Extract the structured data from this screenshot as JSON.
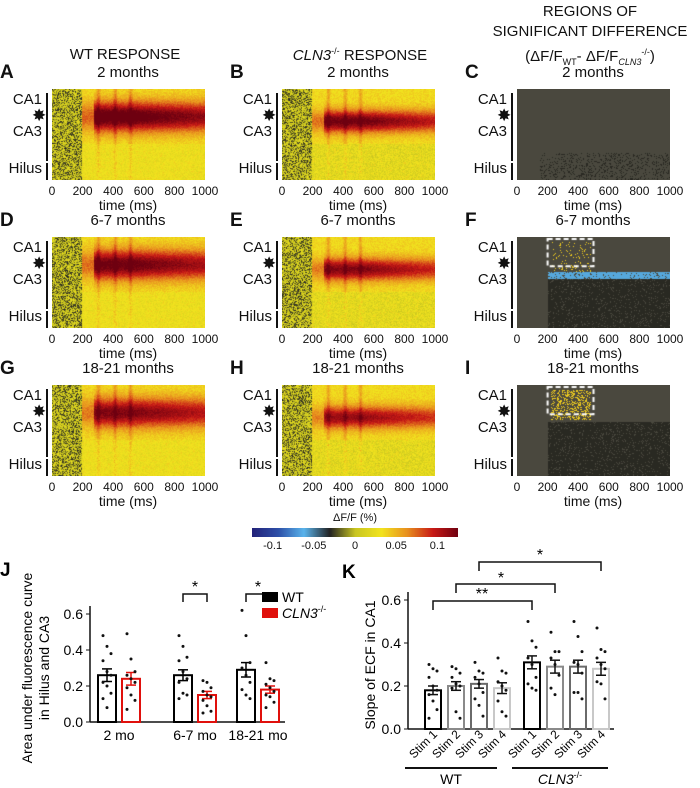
{
  "columns": {
    "wt": "WT RESPONSE",
    "ko_gene": "CLN3",
    "ko_sup": "-/-",
    "ko_rest": " RESPONSE",
    "diff_l1": "REGIONS OF",
    "diff_l2": "SIGNIFICANT DIFFERENCE",
    "diff_l3a": "(ΔF/F",
    "diff_l3b": "WT",
    "diff_l3c": "- ΔF/F",
    "diff_l3d": "CLN3",
    "diff_l3e": "-/-",
    "diff_l3f": ")"
  },
  "panels": [
    {
      "letter": "A",
      "title": "2 months",
      "type": "wt"
    },
    {
      "letter": "B",
      "title": "2 months",
      "type": "ko"
    },
    {
      "letter": "C",
      "title": "2 months",
      "type": "diff"
    },
    {
      "letter": "D",
      "title": "6-7 months",
      "type": "wt"
    },
    {
      "letter": "E",
      "title": "6-7 months",
      "type": "ko"
    },
    {
      "letter": "F",
      "title": "6-7 months",
      "type": "diff"
    },
    {
      "letter": "G",
      "title": "18-21 months",
      "type": "wt"
    },
    {
      "letter": "H",
      "title": "18-21 months",
      "type": "ko"
    },
    {
      "letter": "I",
      "title": "18-21 months",
      "type": "diff"
    }
  ],
  "regions": [
    "CA1",
    "CA3",
    "Hilus"
  ],
  "time_ticks": [
    "0",
    "200",
    "400",
    "600",
    "800",
    "1000"
  ],
  "time_label": "time (ms)",
  "colorbar": {
    "label": "ΔF/F (%)",
    "ticks": [
      "-0.1",
      "-0.05",
      "0",
      "0.05",
      "0.1"
    ],
    "range": [
      -0.125,
      0.125
    ],
    "colors": [
      "#23237a",
      "#2d4fa8",
      "#5ab4ec",
      "#222222",
      "#c9c620",
      "#f2e41e",
      "#e8901e",
      "#c81a16",
      "#6e0010"
    ]
  },
  "chart_data": [
    {
      "type": "bar",
      "panel": "J",
      "ylabel_l1": "Area under fluorescence curve",
      "ylabel_l2": "in Hilus and CA3",
      "categories": [
        "2 mo",
        "6-7 mo",
        "18-21 mo"
      ],
      "ylim": [
        0,
        0.6
      ],
      "yticks": [
        "0.0",
        "0.2",
        "0.4",
        "0.6"
      ],
      "legend": {
        "placement": "top-right",
        "entries": [
          {
            "name": "WT",
            "color": "#000000"
          },
          {
            "name": "CLN3",
            "sup": "-/-",
            "color": "#e0100c"
          }
        ]
      },
      "series": [
        {
          "name": "WT",
          "color": "#000000",
          "values": [
            0.26,
            0.26,
            0.29
          ],
          "sem": [
            0.035,
            0.03,
            0.04
          ],
          "points": [
            [
              0.48,
              0.42,
              0.38,
              0.34,
              0.28,
              0.26,
              0.22,
              0.2,
              0.16,
              0.13,
              0.08
            ],
            [
              0.48,
              0.42,
              0.36,
              0.34,
              0.28,
              0.24,
              0.22,
              0.16,
              0.15,
              0.13
            ],
            [
              0.62,
              0.48,
              0.33,
              0.3,
              0.26,
              0.22,
              0.18,
              0.15,
              0.13
            ]
          ]
        },
        {
          "name": "CLN3-/-",
          "color": "#e0100c",
          "values": [
            0.24,
            0.15,
            0.18
          ],
          "sem": [
            0.035,
            0.02,
            0.02
          ],
          "points": [
            [
              0.49,
              0.35,
              0.28,
              0.26,
              0.24,
              0.22,
              0.19,
              0.15,
              0.12,
              0.07
            ],
            [
              0.23,
              0.22,
              0.19,
              0.17,
              0.15,
              0.14,
              0.12,
              0.09,
              0.06,
              0.05
            ],
            [
              0.33,
              0.24,
              0.23,
              0.21,
              0.19,
              0.17,
              0.15,
              0.14,
              0.11,
              0.08
            ]
          ]
        }
      ],
      "significance": [
        {
          "category": "6-7 mo",
          "label": "*"
        },
        {
          "category": "18-21 mo",
          "label": "*"
        }
      ]
    },
    {
      "type": "bar",
      "panel": "K",
      "ylabel": "Slope of ECF in CA1",
      "ylim": [
        0,
        0.6
      ],
      "yticks": [
        "0.0",
        "0.2",
        "0.4",
        "0.6"
      ],
      "categories": [
        "Stim 1",
        "Stim 2",
        "Stim 3",
        "Stim 4",
        "Stim 1",
        "Stim 2",
        "Stim 3",
        "Stim 4"
      ],
      "groups": [
        {
          "name": "WT"
        },
        {
          "name": "CLN3",
          "sup": "-/-"
        }
      ],
      "bar_colors": [
        "#000000",
        "#8a8a8a",
        "#6a6a6a",
        "#c8c8c8"
      ],
      "values": [
        0.18,
        0.2,
        0.21,
        0.19,
        0.31,
        0.29,
        0.29,
        0.28
      ],
      "sem": [
        0.02,
        0.02,
        0.02,
        0.025,
        0.03,
        0.03,
        0.03,
        0.03
      ],
      "points": [
        [
          0.3,
          0.28,
          0.27,
          0.24,
          0.2,
          0.18,
          0.16,
          0.13,
          0.09,
          0.05
        ],
        [
          0.29,
          0.28,
          0.26,
          0.24,
          0.21,
          0.2,
          0.19,
          0.08,
          0.05
        ],
        [
          0.31,
          0.27,
          0.26,
          0.24,
          0.21,
          0.17,
          0.14,
          0.11,
          0.06
        ],
        [
          0.33,
          0.27,
          0.26,
          0.22,
          0.2,
          0.18,
          0.13,
          0.08,
          0.06
        ],
        [
          0.5,
          0.41,
          0.38,
          0.33,
          0.3,
          0.24,
          0.21,
          0.19,
          0.18
        ],
        [
          0.45,
          0.36,
          0.36,
          0.33,
          0.3,
          0.25,
          0.19,
          0.16
        ],
        [
          0.5,
          0.43,
          0.36,
          0.31,
          0.3,
          0.26,
          0.17,
          0.17,
          0.14
        ],
        [
          0.47,
          0.37,
          0.36,
          0.33,
          0.3,
          0.28,
          0.22,
          0.21,
          0.14
        ]
      ],
      "significance": [
        {
          "from": 0,
          "to": 4,
          "label": "**"
        },
        {
          "from": 1,
          "to": 5,
          "label": "*"
        },
        {
          "from": 2,
          "to": 7,
          "label": "*"
        }
      ]
    }
  ]
}
